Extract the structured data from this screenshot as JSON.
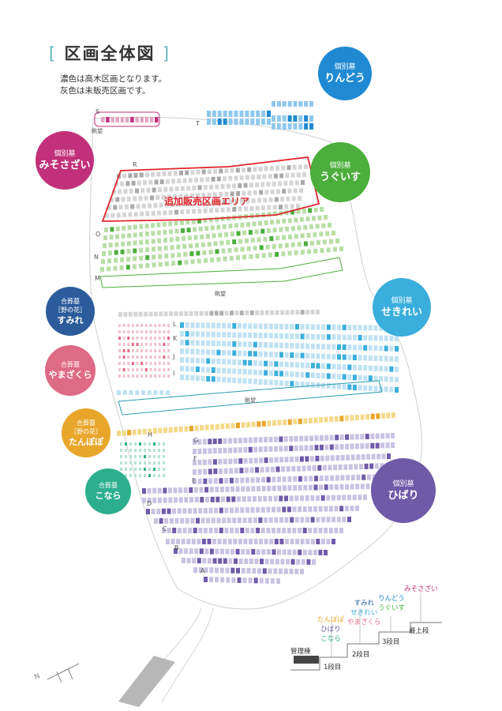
{
  "title": {
    "bracket_left": "[",
    "text": "区画全体図",
    "bracket_right": "]"
  },
  "notes": [
    "濃色は高木区画となります。",
    "灰色は未販売区画です。"
  ],
  "area_label": "追加販売区画エリア",
  "views": [
    "眺望",
    "眺望",
    "眺望"
  ],
  "row_labels": [
    "S",
    "T",
    "R",
    "O",
    "N",
    "M",
    "L",
    "K",
    "J",
    "I",
    "H",
    "G",
    "F",
    "E",
    "D",
    "C",
    "B",
    "A"
  ],
  "sections": {
    "ringo": {
      "kind": "個別墓",
      "name": "りんどう",
      "color": "#1f8ad2"
    },
    "misosazai": {
      "kind": "個別墓",
      "name": "みそさざい",
      "color": "#c1307a"
    },
    "uguisu": {
      "kind": "個別墓",
      "name": "うぐいす",
      "color": "#4cae3c"
    },
    "sumire": {
      "kind": "合葬墓",
      "sub": "［野の花］",
      "name": "すみれ",
      "color": "#2c5c9c"
    },
    "seserei": {
      "kind": "個別墓",
      "name": "せきれい",
      "color": "#3aaedc"
    },
    "yamazakura": {
      "kind": "合葬墓",
      "name": "やまざくら",
      "color": "#de6a86"
    },
    "tanpopo": {
      "kind": "合葬墓",
      "sub": "［野の花］",
      "name": "たんぽぽ",
      "color": "#e8a62a"
    },
    "hibari": {
      "kind": "個別墓",
      "name": "ひばり",
      "color": "#6f5aa8"
    },
    "konara": {
      "kind": "合葬墓",
      "name": "こなら",
      "color": "#2daf8e"
    }
  },
  "legend": {
    "step1": {
      "items": [
        "たんぽぽ",
        "ひばり",
        "こなら"
      ],
      "label": "1段目"
    },
    "step2": {
      "items": [
        "すみれ",
        "せきれい",
        "やまざくら"
      ],
      "label": "2段目"
    },
    "step3": {
      "items": [
        "りんどう",
        "うぐいす"
      ],
      "label": "3段目"
    },
    "top": {
      "items": [
        "みそさざい"
      ],
      "label": "最上段"
    },
    "building": "管理棟",
    "colors": {
      "tanpopo": "#e8a62a",
      "hibari": "#6f5aa8",
      "konara": "#2daf8e",
      "sumire": "#2c5c9c",
      "seserei": "#3aaedc",
      "yamazakura": "#de6a86",
      "ringo": "#1f8ad2",
      "uguisu": "#4cae3c",
      "misosazai": "#c1307a"
    }
  },
  "compass": "N"
}
